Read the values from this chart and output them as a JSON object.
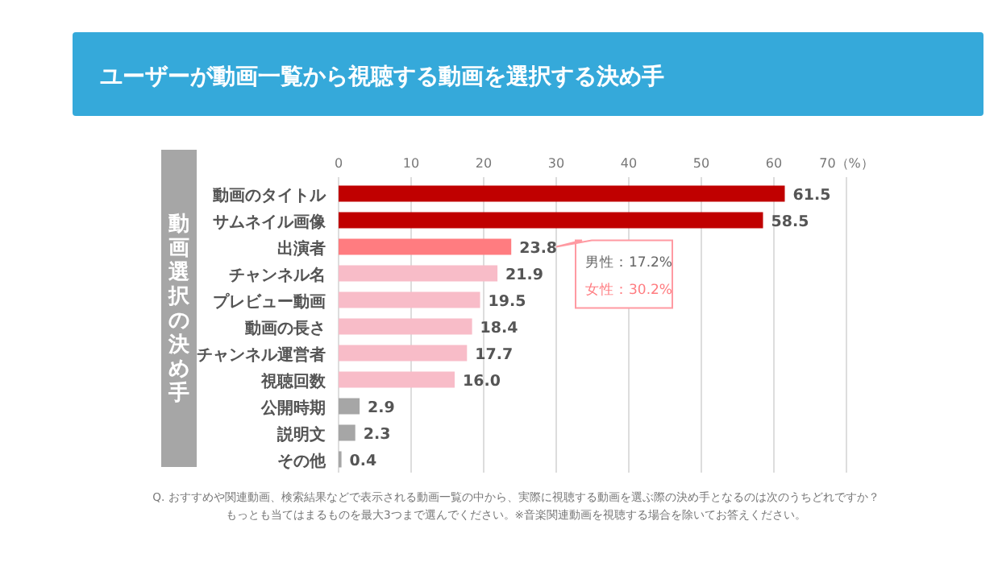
{
  "chart_data": {
    "type": "bar",
    "orientation": "horizontal",
    "title": "ユーザーが動画一覧から視聴する動画を選択する決め手",
    "ylabel": "動画選択の決め手",
    "categories": [
      "動画のタイトル",
      "サムネイル画像",
      "出演者",
      "チャンネル名",
      "プレビュー動画",
      "動画の長さ",
      "チャンネル運営者",
      "視聴回数",
      "公開時期",
      "説明文",
      "その他"
    ],
    "values": [
      61.5,
      58.5,
      23.8,
      21.9,
      19.5,
      18.4,
      17.7,
      16.0,
      2.9,
      2.3,
      0.4
    ],
    "colors": [
      "#c00000",
      "#c00000",
      "#ff7c80",
      "#f8bcc8",
      "#f8bcc8",
      "#f8bcc8",
      "#f8bcc8",
      "#f8bcc8",
      "#a6a6a6",
      "#a6a6a6",
      "#a6a6a6"
    ],
    "value_labels": [
      "61.5",
      "58.5",
      "23.8",
      "21.9",
      "19.5",
      "18.4",
      "17.7",
      "16.0",
      "2.9",
      "2.3",
      "0.4"
    ],
    "xlim": [
      0,
      70
    ],
    "xticks": [
      0,
      10,
      20,
      30,
      40,
      50,
      60,
      {
        "value": 70,
        "label": "70（%）"
      }
    ],
    "grid": "x",
    "annotations": [
      "男性：17.2%",
      "女性：30.2%",
      "Q. おすすめや関連動画、検索結果などで表示される動画一覧の中から、実際に視聴する動画を選ぶ際の決め手となるのは次のうちどれですか？",
      "もっとも当てはまるものを最大3つまで選んでください。※音楽関連動画を視聴する場合を除いてお答えください。"
    ]
  }
}
